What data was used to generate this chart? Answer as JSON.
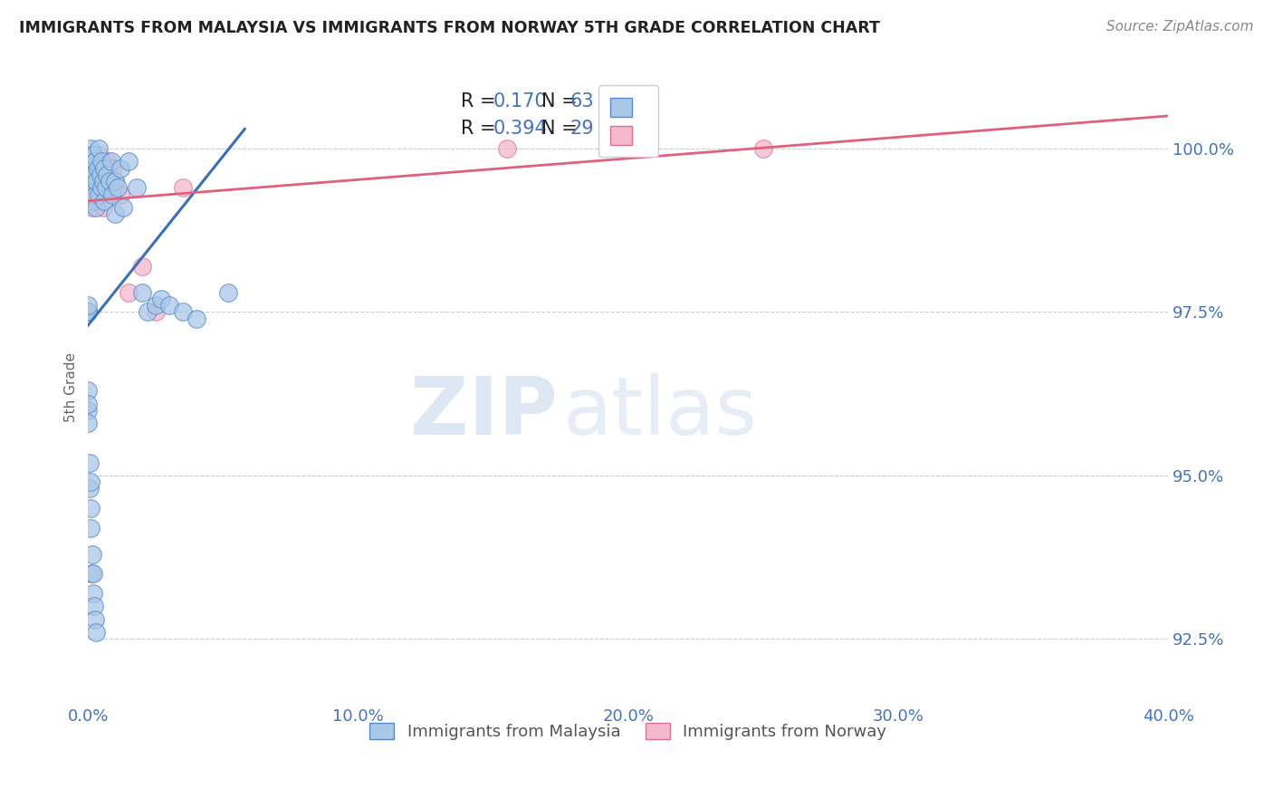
{
  "title": "IMMIGRANTS FROM MALAYSIA VS IMMIGRANTS FROM NORWAY 5TH GRADE CORRELATION CHART",
  "source": "Source: ZipAtlas.com",
  "ylabel": "5th Grade",
  "xlim": [
    0.0,
    40.0
  ],
  "ylim": [
    91.5,
    101.2
  ],
  "yticks": [
    92.5,
    95.0,
    97.5,
    100.0
  ],
  "xticks": [
    0.0,
    10.0,
    20.0,
    30.0,
    40.0
  ],
  "malaysia_color": "#a8c8e8",
  "norway_color": "#f4b8cc",
  "malaysia_edge_color": "#5588cc",
  "norway_edge_color": "#e07090",
  "malaysia_line_color": "#3a6fbd",
  "norway_line_color": "#e06080",
  "legend_label_malaysia": "Immigrants from Malaysia",
  "legend_label_norway": "Immigrants from Norway",
  "watermark_zip": "ZIP",
  "watermark_atlas": "atlas",
  "background_color": "#ffffff",
  "grid_color": "#cccccc",
  "malaysia_x": [
    0.0,
    0.0,
    0.0,
    0.0,
    0.0,
    0.05,
    0.1,
    0.1,
    0.1,
    0.15,
    0.15,
    0.2,
    0.2,
    0.2,
    0.25,
    0.25,
    0.3,
    0.3,
    0.35,
    0.4,
    0.4,
    0.45,
    0.5,
    0.5,
    0.55,
    0.6,
    0.6,
    0.65,
    0.7,
    0.8,
    0.85,
    0.9,
    1.0,
    1.0,
    1.1,
    1.2,
    1.3,
    1.5,
    1.8,
    2.0,
    2.2,
    2.5,
    2.7,
    3.0,
    3.5,
    4.0,
    5.2,
    0.0,
    0.0,
    0.0,
    0.0,
    0.05,
    0.05,
    0.08,
    0.08,
    0.1,
    0.12,
    0.15,
    0.18,
    0.2,
    0.22,
    0.25,
    0.28
  ],
  "malaysia_y": [
    97.5,
    97.5,
    97.5,
    97.5,
    97.6,
    99.8,
    99.5,
    99.7,
    100.0,
    99.4,
    99.9,
    99.2,
    99.6,
    99.9,
    99.3,
    99.8,
    99.1,
    99.5,
    99.7,
    100.0,
    99.3,
    99.6,
    99.4,
    99.8,
    99.5,
    99.2,
    99.7,
    99.4,
    99.6,
    99.5,
    99.8,
    99.3,
    99.5,
    99.0,
    99.4,
    99.7,
    99.1,
    99.8,
    99.4,
    97.8,
    97.5,
    97.6,
    97.7,
    97.6,
    97.5,
    97.4,
    97.8,
    96.0,
    96.3,
    95.8,
    96.1,
    94.8,
    95.2,
    94.5,
    94.9,
    94.2,
    93.5,
    93.8,
    93.2,
    93.5,
    93.0,
    92.8,
    92.6
  ],
  "norway_x": [
    0.0,
    0.0,
    0.0,
    0.0,
    0.05,
    0.1,
    0.15,
    0.2,
    0.25,
    0.3,
    0.35,
    0.4,
    0.45,
    0.5,
    0.55,
    0.6,
    0.7,
    0.8,
    0.9,
    1.0,
    1.2,
    1.5,
    2.0,
    2.5,
    3.5,
    15.5,
    25.0
  ],
  "norway_y": [
    99.3,
    99.6,
    99.8,
    99.5,
    99.4,
    99.7,
    99.1,
    99.5,
    99.8,
    99.2,
    99.6,
    99.9,
    99.3,
    99.7,
    99.1,
    99.5,
    99.8,
    99.4,
    99.7,
    99.5,
    99.3,
    97.8,
    98.2,
    97.5,
    99.4,
    100.0,
    100.0
  ]
}
